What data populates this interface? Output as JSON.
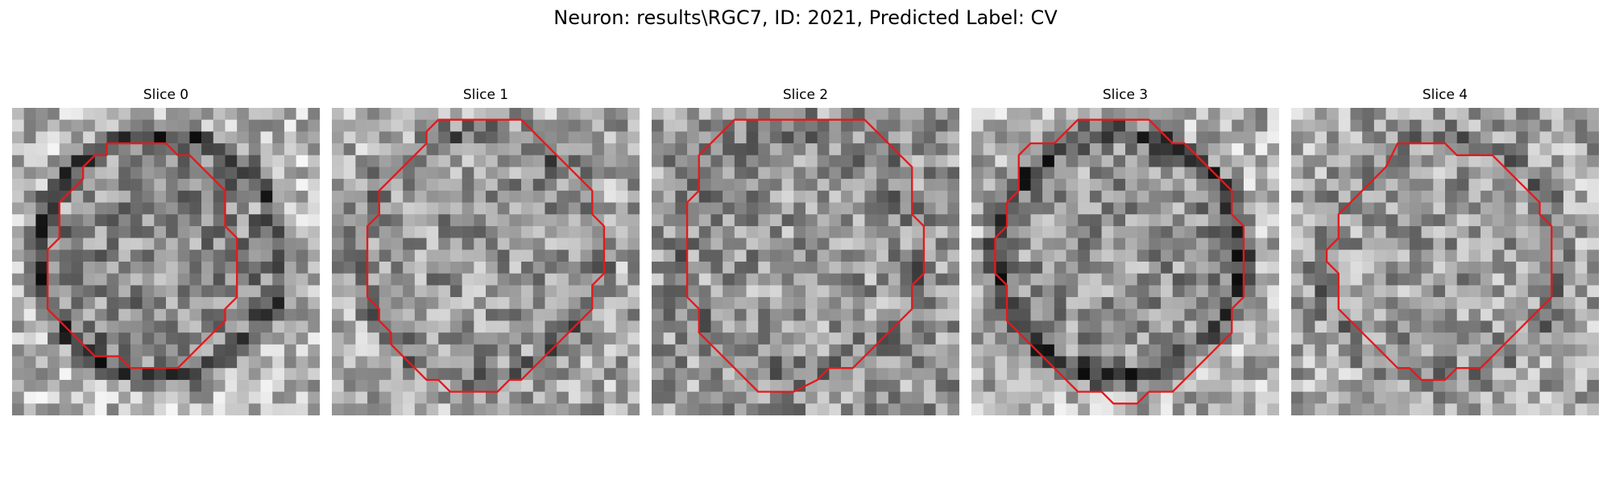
{
  "figure": {
    "title": "Neuron: results\\RGC7, ID: 2021, Predicted Label: CV"
  },
  "colors": {
    "contour": "#e31a1c",
    "background": "#ffffff"
  },
  "panels": [
    {
      "title": "Slice 0",
      "image": {
        "content": "grayscale-noise-patch",
        "ring": "dark",
        "ring_strength": 0.9,
        "center_brightness": 0.55,
        "outer_brightness": 0.72
      },
      "contour": [
        [
          8,
          3
        ],
        [
          13,
          3
        ],
        [
          14,
          4
        ],
        [
          15,
          4
        ],
        [
          16,
          5
        ],
        [
          17,
          6
        ],
        [
          18,
          7
        ],
        [
          18,
          10
        ],
        [
          19,
          11
        ],
        [
          19,
          16
        ],
        [
          18,
          17
        ],
        [
          18,
          18
        ],
        [
          17,
          19
        ],
        [
          16,
          20
        ],
        [
          15,
          21
        ],
        [
          14,
          22
        ],
        [
          10,
          22
        ],
        [
          9,
          21
        ],
        [
          7,
          21
        ],
        [
          6,
          20
        ],
        [
          5,
          19
        ],
        [
          4,
          18
        ],
        [
          3,
          17
        ],
        [
          3,
          12
        ],
        [
          4,
          11
        ],
        [
          4,
          8
        ],
        [
          5,
          7
        ],
        [
          6,
          6
        ],
        [
          6,
          5
        ],
        [
          7,
          4
        ],
        [
          8,
          4
        ]
      ]
    },
    {
      "title": "Slice 1",
      "image": {
        "content": "grayscale-noise-patch",
        "ring": "faint",
        "ring_strength": 0.45,
        "center_brightness": 0.6,
        "outer_brightness": 0.66
      },
      "contour": [
        [
          9,
          1
        ],
        [
          16,
          1
        ],
        [
          17,
          2
        ],
        [
          18,
          3
        ],
        [
          19,
          4
        ],
        [
          20,
          5
        ],
        [
          21,
          6
        ],
        [
          22,
          7
        ],
        [
          22,
          9
        ],
        [
          23,
          10
        ],
        [
          23,
          14
        ],
        [
          22,
          15
        ],
        [
          22,
          17
        ],
        [
          21,
          18
        ],
        [
          20,
          19
        ],
        [
          19,
          20
        ],
        [
          18,
          21
        ],
        [
          17,
          22
        ],
        [
          16,
          23
        ],
        [
          15,
          23
        ],
        [
          14,
          24
        ],
        [
          10,
          24
        ],
        [
          9,
          23
        ],
        [
          8,
          23
        ],
        [
          7,
          22
        ],
        [
          6,
          21
        ],
        [
          5,
          20
        ],
        [
          5,
          19
        ],
        [
          4,
          18
        ],
        [
          4,
          17
        ],
        [
          3,
          16
        ],
        [
          3,
          10
        ],
        [
          4,
          9
        ],
        [
          4,
          7
        ],
        [
          5,
          6
        ],
        [
          6,
          5
        ],
        [
          7,
          4
        ],
        [
          8,
          3
        ],
        [
          8,
          2
        ]
      ]
    },
    {
      "title": "Slice 2",
      "image": {
        "content": "grayscale-noise-patch",
        "ring": "faint",
        "ring_strength": 0.25,
        "center_brightness": 0.6,
        "outer_brightness": 0.6
      },
      "contour": [
        [
          7,
          1
        ],
        [
          18,
          1
        ],
        [
          19,
          2
        ],
        [
          20,
          3
        ],
        [
          21,
          4
        ],
        [
          22,
          5
        ],
        [
          22,
          9
        ],
        [
          23,
          10
        ],
        [
          23,
          14
        ],
        [
          22,
          15
        ],
        [
          22,
          17
        ],
        [
          21,
          18
        ],
        [
          20,
          19
        ],
        [
          19,
          20
        ],
        [
          18,
          21
        ],
        [
          17,
          22
        ],
        [
          15,
          22
        ],
        [
          14,
          23
        ],
        [
          12,
          24
        ],
        [
          9,
          24
        ],
        [
          8,
          23
        ],
        [
          7,
          22
        ],
        [
          6,
          21
        ],
        [
          5,
          20
        ],
        [
          4,
          19
        ],
        [
          4,
          17
        ],
        [
          3,
          16
        ],
        [
          3,
          8
        ],
        [
          4,
          7
        ],
        [
          4,
          4
        ],
        [
          5,
          3
        ],
        [
          6,
          2
        ]
      ]
    },
    {
      "title": "Slice 3",
      "image": {
        "content": "grayscale-noise-patch",
        "ring": "dark",
        "ring_strength": 0.95,
        "center_brightness": 0.58,
        "outer_brightness": 0.7
      },
      "contour": [
        [
          9,
          1
        ],
        [
          15,
          1
        ],
        [
          16,
          2
        ],
        [
          17,
          3
        ],
        [
          18,
          3
        ],
        [
          19,
          4
        ],
        [
          20,
          5
        ],
        [
          21,
          6
        ],
        [
          22,
          7
        ],
        [
          22,
          9
        ],
        [
          23,
          10
        ],
        [
          23,
          16
        ],
        [
          22,
          17
        ],
        [
          22,
          19
        ],
        [
          21,
          20
        ],
        [
          20,
          21
        ],
        [
          19,
          22
        ],
        [
          18,
          23
        ],
        [
          17,
          24
        ],
        [
          15,
          24
        ],
        [
          14,
          25
        ],
        [
          12,
          25
        ],
        [
          11,
          24
        ],
        [
          9,
          24
        ],
        [
          8,
          23
        ],
        [
          7,
          22
        ],
        [
          6,
          21
        ],
        [
          5,
          20
        ],
        [
          4,
          19
        ],
        [
          3,
          18
        ],
        [
          3,
          15
        ],
        [
          2,
          14
        ],
        [
          2,
          11
        ],
        [
          3,
          10
        ],
        [
          3,
          8
        ],
        [
          4,
          7
        ],
        [
          4,
          4
        ],
        [
          5,
          3
        ],
        [
          7,
          3
        ],
        [
          8,
          2
        ]
      ]
    },
    {
      "title": "Slice 4",
      "image": {
        "content": "grayscale-noise-patch",
        "ring": "faint",
        "ring_strength": 0.35,
        "center_brightness": 0.62,
        "outer_brightness": 0.66
      },
      "contour": [
        [
          9,
          3
        ],
        [
          13,
          3
        ],
        [
          14,
          4
        ],
        [
          17,
          4
        ],
        [
          18,
          5
        ],
        [
          19,
          6
        ],
        [
          20,
          7
        ],
        [
          21,
          8
        ],
        [
          21,
          9
        ],
        [
          22,
          10
        ],
        [
          22,
          16
        ],
        [
          21,
          17
        ],
        [
          20,
          18
        ],
        [
          19,
          19
        ],
        [
          18,
          20
        ],
        [
          17,
          21
        ],
        [
          16,
          22
        ],
        [
          14,
          22
        ],
        [
          13,
          23
        ],
        [
          11,
          23
        ],
        [
          10,
          22
        ],
        [
          9,
          22
        ],
        [
          8,
          21
        ],
        [
          7,
          20
        ],
        [
          6,
          19
        ],
        [
          5,
          18
        ],
        [
          4,
          17
        ],
        [
          4,
          14
        ],
        [
          3,
          13
        ],
        [
          3,
          12
        ],
        [
          4,
          11
        ],
        [
          4,
          9
        ],
        [
          5,
          8
        ],
        [
          6,
          7
        ],
        [
          7,
          6
        ],
        [
          8,
          5
        ]
      ]
    }
  ]
}
